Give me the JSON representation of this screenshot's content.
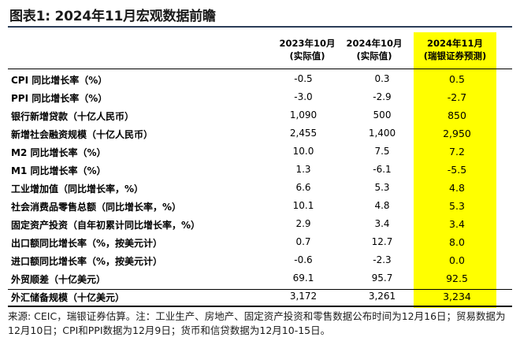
{
  "title": "图表1: 2024年11月宏观数据前瞻",
  "columns": [
    {
      "line1": "2023年10月",
      "line2": "(实际值)"
    },
    {
      "line1": "2024年10月",
      "line2": "(实际值)"
    },
    {
      "line1": "2024年11月",
      "line2": "(瑞银证券预测)"
    }
  ],
  "rows": [
    {
      "label": "CPI 同比增长率（%）",
      "v1": "-0.5",
      "v2": "0.3",
      "v3": "0.5"
    },
    {
      "label": "PPI 同比增长率（%）",
      "v1": "-3.0",
      "v2": "-2.9",
      "v3": "-2.7"
    },
    {
      "label": "银行新增贷款（十亿人民币）",
      "v1": "1,090",
      "v2": "500",
      "v3": "850"
    },
    {
      "label": "新增社会融资规模（十亿人民币）",
      "v1": "2,455",
      "v2": "1,400",
      "v3": "2,950"
    },
    {
      "label": "M2 同比增长率（%）",
      "v1": "10.0",
      "v2": "7.5",
      "v3": "7.2"
    },
    {
      "label": "M1 同比增长率（%）",
      "v1": "1.3",
      "v2": "-6.1",
      "v3": "-5.5"
    },
    {
      "label": "工业增加值（同比增长率，%）",
      "v1": "6.6",
      "v2": "5.3",
      "v3": "4.8"
    },
    {
      "label": "社会消费品零售总额（同比增长率，%）",
      "v1": "10.1",
      "v2": "4.8",
      "v3": "5.3"
    },
    {
      "label": "固定资产投资（自年初累计同比增长率，%）",
      "v1": "2.9",
      "v2": "3.4",
      "v3": "3.4"
    },
    {
      "label": "出口额同比增长率（%，按美元计）",
      "v1": "0.7",
      "v2": "12.7",
      "v3": "8.0"
    },
    {
      "label": "进口额同比增长率（%，按美元计）",
      "v1": "-0.6",
      "v2": "-2.3",
      "v3": "0.0"
    },
    {
      "label": "外贸顺差（十亿美元）",
      "v1": "69.1",
      "v2": "95.7",
      "v3": "92.5"
    },
    {
      "label": "外汇储备规模（十亿美元）",
      "v1": "3,172",
      "v2": "3,261",
      "v3": "3,234"
    }
  ],
  "note": "来源: CEIC，瑞银证券估算。注：工业生产、房地产、固定资产投资和零售数据公布时间为12月16日；贸易数据为12月10日；CPI和PPI数据为12月9日；货币和信贷数据为12月10-15日。",
  "colors": {
    "highlight": "#ffff00",
    "rule": "#2b3d58"
  }
}
